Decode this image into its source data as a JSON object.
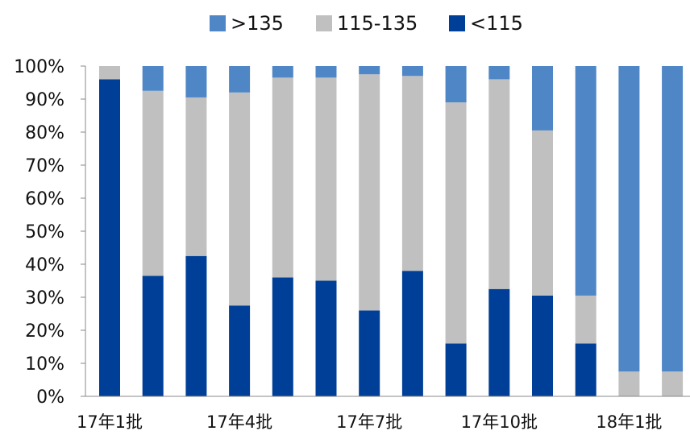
{
  "chart_data": {
    "type": "bar",
    "stacked": true,
    "normalized": true,
    "title": "",
    "xlabel": "",
    "ylabel": "",
    "ylim": [
      0,
      100
    ],
    "yticks": [
      "0%",
      "10%",
      "20%",
      "30%",
      "40%",
      "50%",
      "60%",
      "70%",
      "80%",
      "90%",
      "100%"
    ],
    "xtick_labels": [
      "17年1批",
      "17年4批",
      "17年7批",
      "17年10批",
      "18年1批"
    ],
    "xtick_positions": [
      0,
      3,
      6,
      9,
      12
    ],
    "bar_count": 14,
    "legend_position": "top-center",
    "series": [
      {
        "name": "<115",
        "color": "#003f98",
        "values": [
          96,
          36.5,
          42.5,
          27.5,
          36,
          35,
          26,
          38,
          16,
          32.5,
          30.5,
          16,
          0,
          0
        ]
      },
      {
        "name": "115-135",
        "color": "#c0c0c0",
        "values": [
          4,
          56,
          48,
          64.5,
          60.5,
          61.5,
          71.5,
          59,
          73,
          63.5,
          50,
          14.5,
          7.5,
          7.5
        ]
      },
      {
        "name": ">135",
        "color": "#4f86c6",
        "values": [
          0,
          7.5,
          9.5,
          8,
          3.5,
          3.5,
          2.5,
          3,
          11,
          4,
          19.5,
          69.5,
          92.5,
          92.5
        ]
      }
    ]
  }
}
